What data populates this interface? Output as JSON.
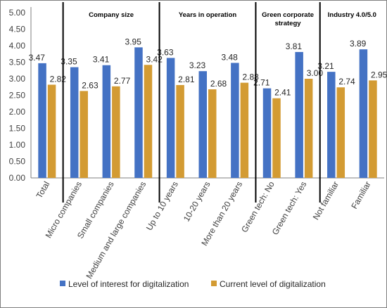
{
  "chart_data": {
    "type": "bar",
    "categories": [
      "Total",
      "Micro companies",
      "Small companies",
      "Medium and large companies",
      "Up to 10 years",
      "10-20 years",
      "More than 20 years",
      "Green tech: No",
      "Green tech: Yes",
      "Not familiar",
      "Familiar"
    ],
    "series": [
      {
        "name": "Level of interest for digitalization",
        "values": [
          3.47,
          3.35,
          3.41,
          3.95,
          3.63,
          3.23,
          3.48,
          2.71,
          3.81,
          3.21,
          3.89
        ]
      },
      {
        "name": "Current level of digitalization",
        "values": [
          2.82,
          2.63,
          2.77,
          3.42,
          2.81,
          2.68,
          2.88,
          2.41,
          3.0,
          2.74,
          2.95
        ]
      }
    ],
    "value_labels": [
      [
        "3.47",
        "3.35",
        "3.41",
        "3.95",
        "3.63",
        "3.23",
        "3.48",
        "2.71",
        "3.81",
        "3.21",
        "3.89"
      ],
      [
        "2.82",
        "2.63",
        "2.77",
        "3.42",
        "2.81",
        "2.68",
        "2.88",
        "2.41",
        "3.00",
        "2.74",
        "2.95"
      ]
    ],
    "groups": [
      {
        "label": "Company size",
        "start": 1,
        "end": 3
      },
      {
        "label": "Years in operation",
        "start": 4,
        "end": 6
      },
      {
        "label": "Green corporate strategy",
        "start": 7,
        "end": 8
      },
      {
        "label": "Industry 4.0/5.0",
        "start": 9,
        "end": 10
      }
    ],
    "y_ticks": [
      "0.00",
      "0.50",
      "1.00",
      "1.50",
      "2.00",
      "2.50",
      "3.00",
      "3.50",
      "4.00",
      "4.50",
      "5.00"
    ],
    "ylim": [
      0,
      5
    ],
    "grid": false,
    "legend_position": "bottom",
    "colors": {
      "series1": "#4472c4",
      "series2": "#d39b33",
      "separator": "#000000",
      "axis": "#7f7f7f"
    }
  }
}
